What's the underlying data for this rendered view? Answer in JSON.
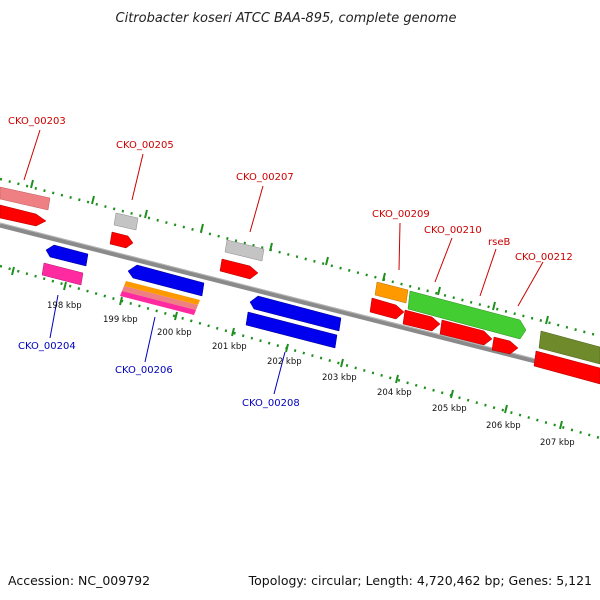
{
  "title": "Citrobacter koseri ATCC BAA-895, complete genome",
  "footer": {
    "accession": "Accession: NC_009792",
    "topology": "Topology: circular; Length: 4,720,462 bp; Genes: 5,121"
  },
  "colors": {
    "forward_label": "#cc0000",
    "reverse_label": "#0000bb",
    "backbone": "#7a7a7a",
    "dotted_ring": "#1f8f1f",
    "red_gene": "#ff0000",
    "blue_gene": "#0000ee",
    "pink_gene": "#ff2aa0",
    "light_red_gene": "#ee7f82",
    "gray_gene": "#c4c4c4",
    "orange_gene": "#ff9900",
    "green_gene": "#44cc33",
    "olive_gene": "#6f8a2a"
  },
  "gene_labels": {
    "forward": [
      "CKO_00203",
      "CKO_00205",
      "CKO_00207",
      "CKO_00209",
      "CKO_00210",
      "rseB",
      "CKO_00212"
    ],
    "reverse": [
      "CKO_00204",
      "CKO_00206",
      "CKO_00208"
    ]
  },
  "position_labels": [
    "198 kbp",
    "199 kbp",
    "200 kbp",
    "201 kbp",
    "202 kbp",
    "203 kbp",
    "204 kbp",
    "205 kbp",
    "206 kbp",
    "207 kbp"
  ]
}
